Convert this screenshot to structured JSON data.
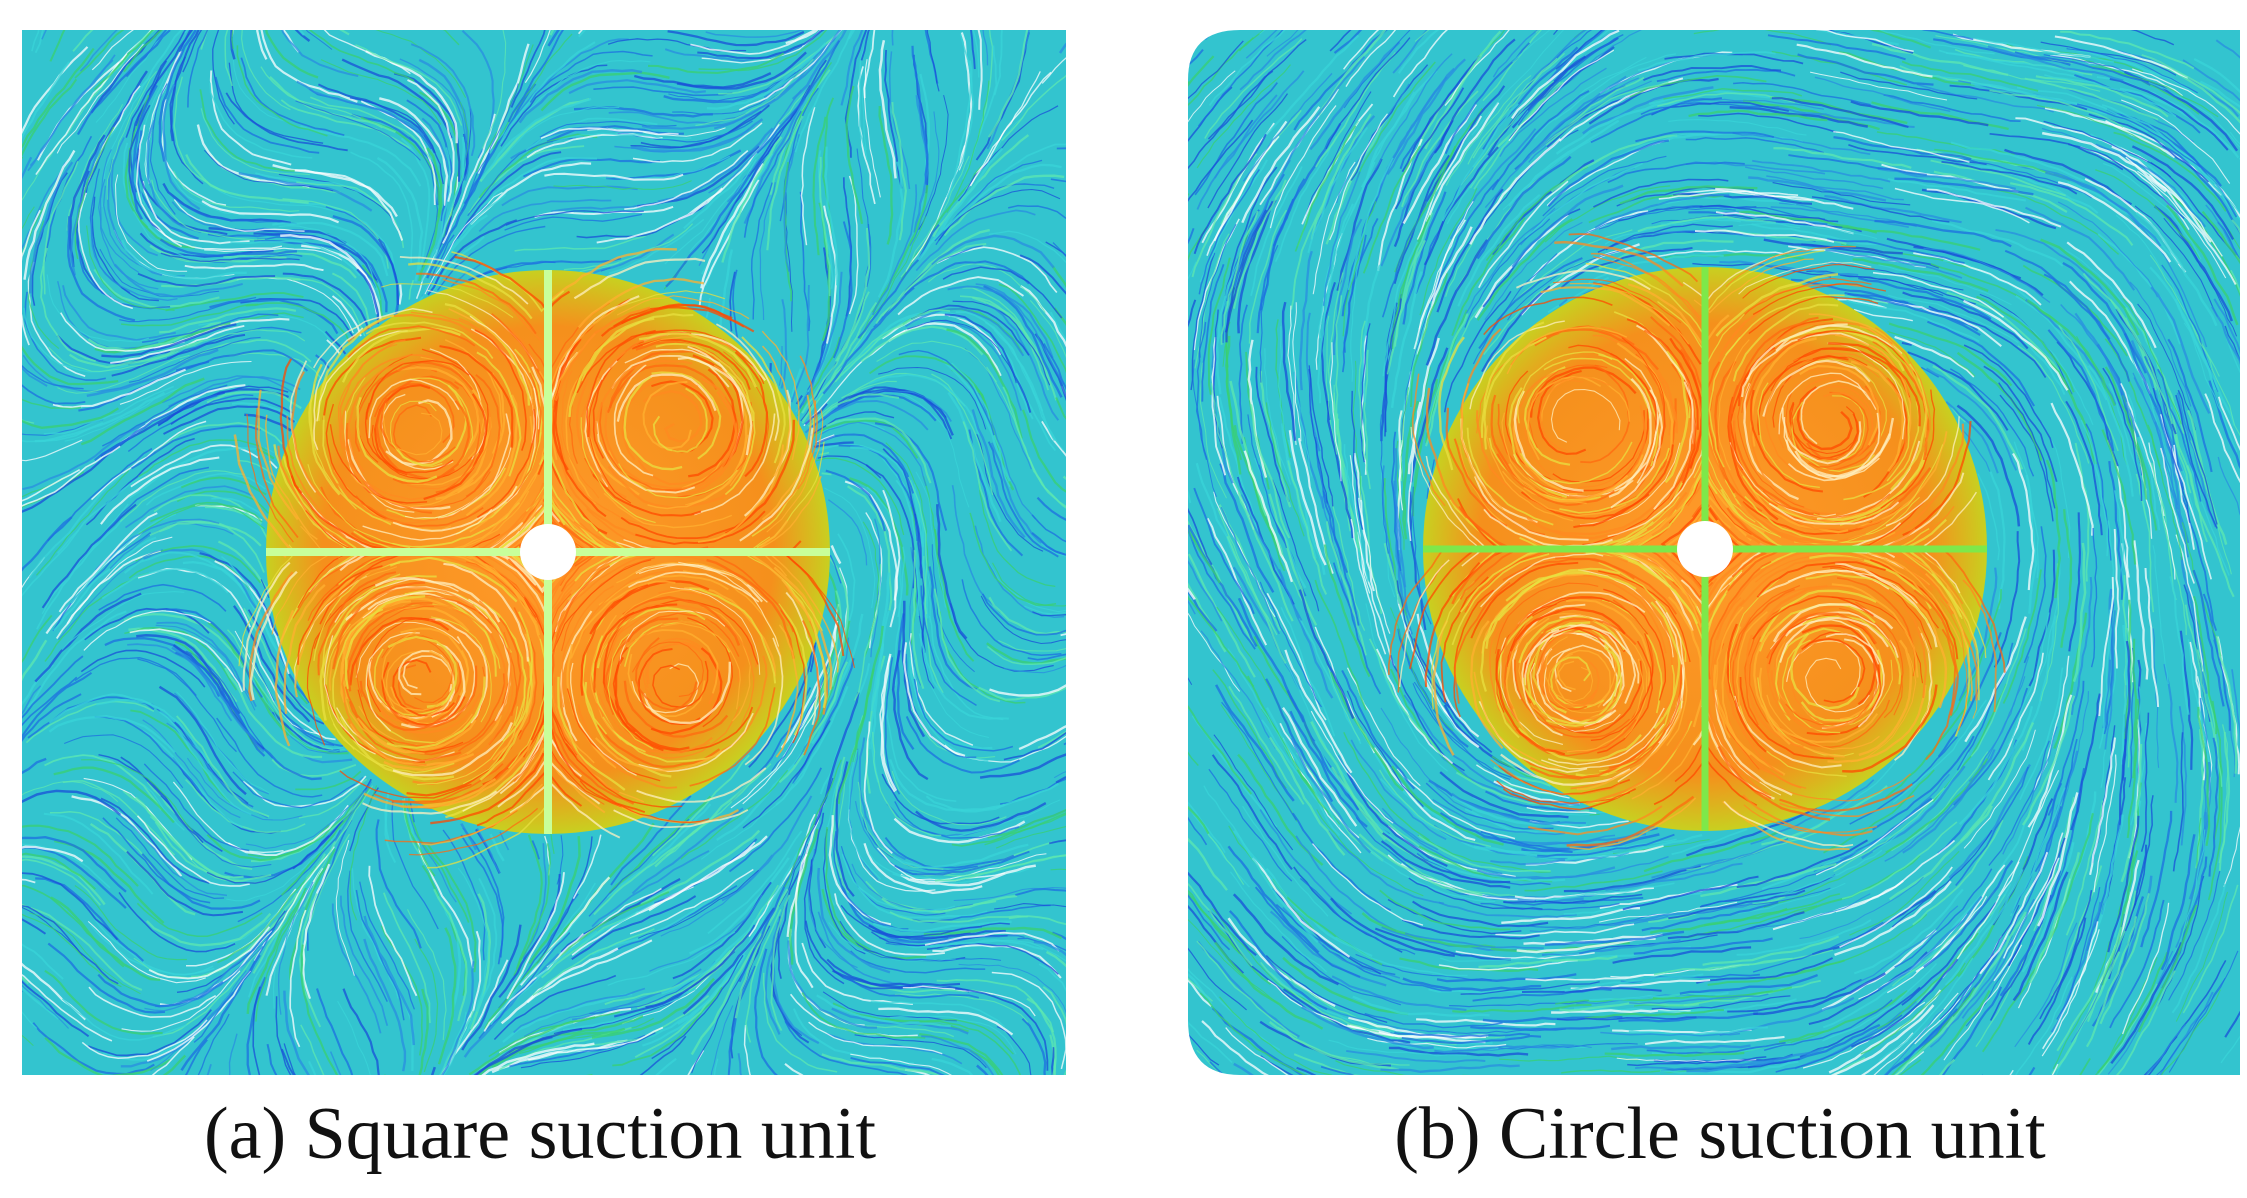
{
  "figure": {
    "panels": [
      {
        "caption": "(a) Square suction unit"
      },
      {
        "caption": "(b) Circle suction unit"
      }
    ]
  }
}
